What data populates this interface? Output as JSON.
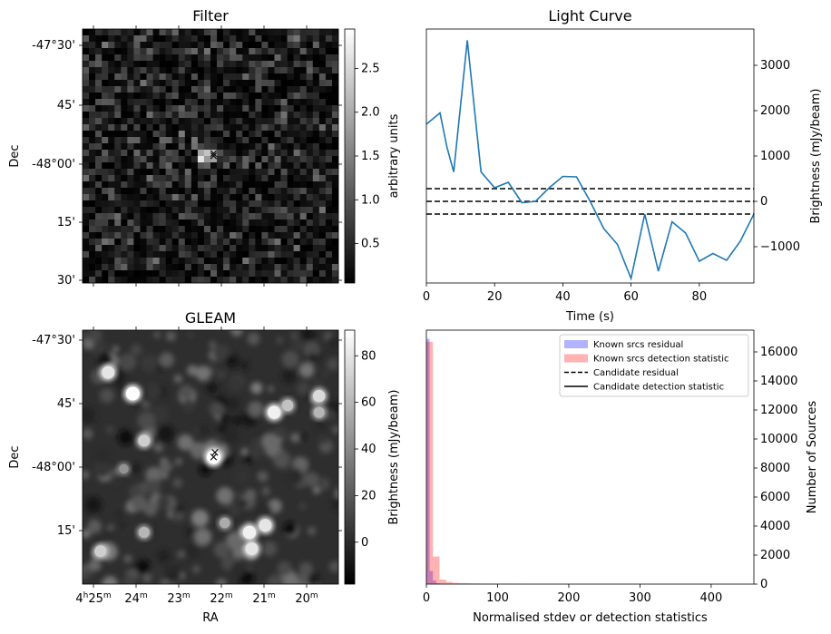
{
  "chart_data": [
    {
      "type": "heatmap",
      "title": "Filter",
      "ylabel": "Dec",
      "y_ticks": [
        "-47°30'",
        "45'",
        "-48°00'",
        "15'",
        "30'"
      ],
      "colorbar_label": "arbitrary units",
      "colorbar_ticks": [
        "0.5",
        "1.0",
        "1.5",
        "2.0",
        "2.5"
      ],
      "colorbar_range": [
        0.05,
        2.95
      ],
      "colormap": "gray",
      "markers": [
        {
          "symbol": "×",
          "color": "#ff0000",
          "ra_h": 22.2,
          "dec_deg": -47.97
        },
        {
          "symbol": "×",
          "color": "#0000ff",
          "ra_h": 22.2,
          "dec_deg": -47.98
        }
      ]
    },
    {
      "type": "line",
      "title": "Light Curve",
      "xlabel": "Time (s)",
      "ylabel": "Brightness (mJy/beam)",
      "xlim": [
        0,
        96
      ],
      "ylim": [
        -1800,
        3800
      ],
      "x_ticks": [
        0,
        20,
        40,
        60,
        80
      ],
      "y_ticks": [
        -1000,
        0,
        1000,
        2000,
        3000
      ],
      "color": "#1f77b4",
      "x": [
        0,
        4,
        6,
        8,
        12,
        16,
        20,
        24,
        28,
        32,
        36,
        40,
        44,
        48,
        52,
        56,
        60,
        64,
        68,
        72,
        76,
        80,
        84,
        88,
        92,
        96
      ],
      "y": [
        1700,
        1950,
        1200,
        650,
        3550,
        650,
        300,
        420,
        -30,
        0,
        300,
        550,
        540,
        0,
        -600,
        -950,
        -1700,
        -280,
        -1540,
        -450,
        -700,
        -1320,
        -1150,
        -1300,
        -880,
        -280
      ],
      "hlines": [
        {
          "y": 280,
          "style": "dashed",
          "color": "#000000"
        },
        {
          "y": 0,
          "style": "dashed",
          "color": "#000000"
        },
        {
          "y": -280,
          "style": "dashed",
          "color": "#000000"
        }
      ]
    },
    {
      "type": "heatmap",
      "title": "GLEAM",
      "xlabel": "RA",
      "ylabel": "Dec",
      "x_ticks": [
        "4h25m",
        "24m",
        "23m",
        "22m",
        "21m",
        "20m"
      ],
      "y_ticks": [
        "-47°30'",
        "45'",
        "-48°00'",
        "15'"
      ],
      "colorbar_label": "Brightness (mJy/beam)",
      "colorbar_ticks": [
        "0",
        "20",
        "40",
        "60",
        "80"
      ],
      "colorbar_range": [
        -18,
        91
      ],
      "colormap": "gray",
      "sources": [
        {
          "ra_h": 24.55,
          "dec_deg": -47.62,
          "brightness": 80
        },
        {
          "ra_h": 24.0,
          "dec_deg": -47.71,
          "brightness": 90
        },
        {
          "ra_h": 23.75,
          "dec_deg": -47.91,
          "brightness": 70
        },
        {
          "ra_h": 22.2,
          "dec_deg": -47.98,
          "brightness": 91
        },
        {
          "ra_h": 20.85,
          "dec_deg": -47.79,
          "brightness": 85
        },
        {
          "ra_h": 20.55,
          "dec_deg": -47.76,
          "brightness": 65
        },
        {
          "ra_h": 19.85,
          "dec_deg": -47.72,
          "brightness": 75
        },
        {
          "ra_h": 19.85,
          "dec_deg": -47.79,
          "brightness": 60
        },
        {
          "ra_h": 21.4,
          "dec_deg": -48.3,
          "brightness": 85
        },
        {
          "ra_h": 21.05,
          "dec_deg": -48.27,
          "brightness": 80
        },
        {
          "ra_h": 21.35,
          "dec_deg": -48.37,
          "brightness": 80
        },
        {
          "ra_h": 23.75,
          "dec_deg": -48.3,
          "brightness": 60
        },
        {
          "ra_h": 24.72,
          "dec_deg": -48.38,
          "brightness": 70
        },
        {
          "ra_h": 24.2,
          "dec_deg": -48.03,
          "brightness": 45
        },
        {
          "ra_h": 21.95,
          "dec_deg": -48.26,
          "brightness": 55
        }
      ],
      "markers": [
        {
          "symbol": "×",
          "color": "#ff0000",
          "ra_h": 22.17,
          "dec_deg": -47.96
        },
        {
          "symbol": "×",
          "color": "#0000ff",
          "ra_h": 22.2,
          "dec_deg": -47.98
        }
      ]
    },
    {
      "type": "bar",
      "xlabel": "Normalised stdev or detection statistics",
      "ylabel": "Number of Sources",
      "xlim": [
        0,
        460
      ],
      "ylim": [
        0,
        17500
      ],
      "x_ticks": [
        0,
        100,
        200,
        300,
        400
      ],
      "y_ticks": [
        0,
        2000,
        4000,
        6000,
        8000,
        10000,
        12000,
        14000,
        16000
      ],
      "legend_position": "top-right",
      "series": [
        {
          "name": "Known srcs residual",
          "color": "#0000ff",
          "alpha": 0.3,
          "bin_width": 4.6,
          "bins_start": [
            0,
            4.6,
            9.2,
            13.8,
            18.4,
            23
          ],
          "values": [
            16900,
            900,
            250,
            60,
            20,
            8
          ]
        },
        {
          "name": "Known srcs detection statistic",
          "color": "#ff0000",
          "alpha": 0.3,
          "bin_width": 9.2,
          "bins_start": [
            0,
            9.2,
            18.4,
            27.6,
            36.8,
            46,
            55.2,
            64.4,
            73.6,
            82.8,
            92,
            101.2,
            110.4,
            119.6,
            128.8,
            138,
            147.2,
            156.4,
            165.6
          ],
          "values": [
            16700,
            1900,
            310,
            150,
            90,
            70,
            55,
            45,
            40,
            35,
            35,
            30,
            25,
            20,
            18,
            15,
            12,
            10,
            8
          ]
        }
      ],
      "legend_extra": [
        {
          "name": "Candidate residual",
          "style": "dashed",
          "color": "#000000"
        },
        {
          "name": "Candidate detection statistic",
          "style": "solid",
          "color": "#000000"
        }
      ]
    }
  ]
}
